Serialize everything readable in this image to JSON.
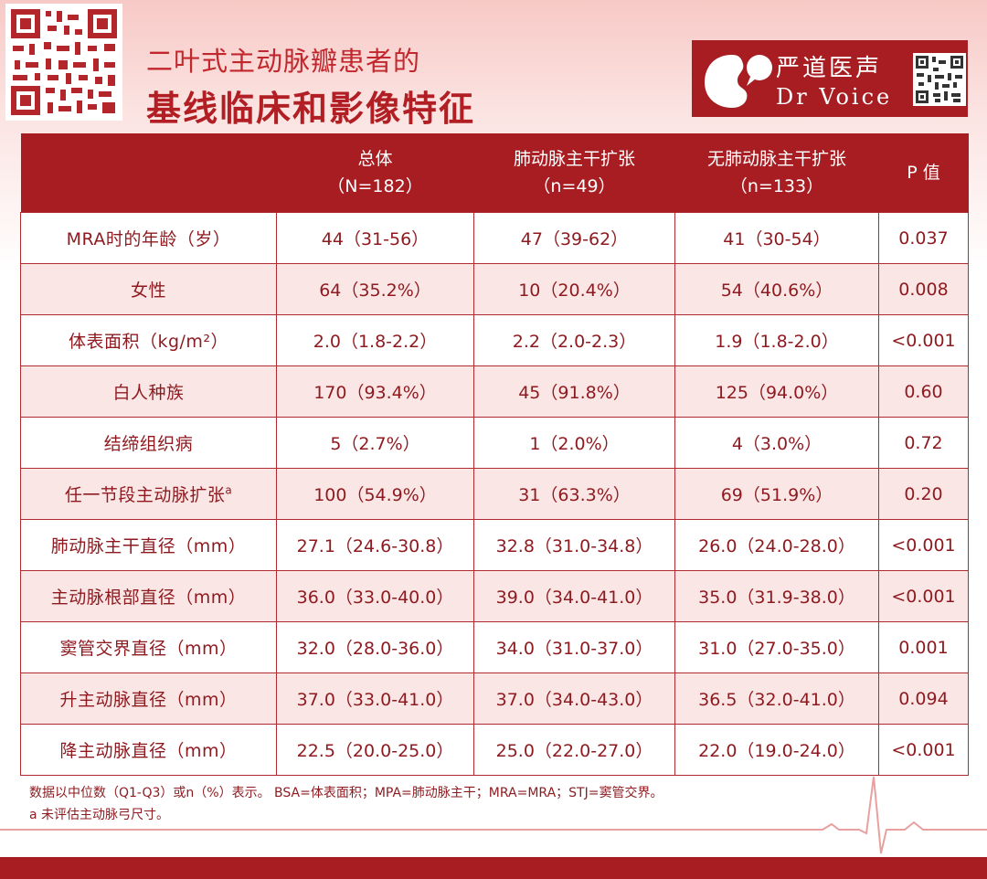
{
  "header": {
    "title_line1": "二叶式主动脉瓣患者的",
    "title_line2": "基线临床和影像特征"
  },
  "brand": {
    "name_cn": "严道医声",
    "name_en": "Dr Voice",
    "color": "#a71d22"
  },
  "table": {
    "columns": [
      {
        "line1": "",
        "line2": ""
      },
      {
        "line1": "总体",
        "line2": "（N=182）"
      },
      {
        "line1": "肺动脉主干扩张",
        "line2": "（n=49）"
      },
      {
        "line1": "无肺动脉主干扩张",
        "line2": "（n=133）"
      },
      {
        "line1": "P 值",
        "line2": ""
      }
    ],
    "rows": [
      {
        "label": "MRA时的年龄（岁）",
        "overall": "44（31-56）",
        "dilated": "47（39-62）",
        "not_dilated": "41（30-54）",
        "p": "0.037"
      },
      {
        "label": "女性",
        "overall": "64（35.2%）",
        "dilated": "10（20.4%）",
        "not_dilated": "54（40.6%）",
        "p": "0.008"
      },
      {
        "label": "体表面积（kg/m²）",
        "overall": "2.0（1.8-2.2）",
        "dilated": "2.2（2.0-2.3）",
        "not_dilated": "1.9（1.8-2.0）",
        "p": "<0.001"
      },
      {
        "label": "白人种族",
        "overall": "170（93.4%）",
        "dilated": "45（91.8%）",
        "not_dilated": "125（94.0%）",
        "p": "0.60"
      },
      {
        "label": "结缔组织病",
        "overall": "5（2.7%）",
        "dilated": "1（2.0%）",
        "not_dilated": "4（3.0%）",
        "p": "0.72"
      },
      {
        "label": "任一节段主动脉扩张",
        "label_sup": "a",
        "overall": "100（54.9%）",
        "dilated": "31（63.3%）",
        "not_dilated": "69（51.9%）",
        "p": "0.20"
      },
      {
        "label": "肺动脉主干直径（mm）",
        "overall": "27.1（24.6-30.8）",
        "dilated": "32.8（31.0-34.8）",
        "not_dilated": "26.0（24.0-28.0）",
        "p": "<0.001"
      },
      {
        "label": "主动脉根部直径（mm）",
        "overall": "36.0（33.0-40.0）",
        "dilated": "39.0（34.0-41.0）",
        "not_dilated": "35.0（31.9-38.0）",
        "p": "<0.001"
      },
      {
        "label": "窦管交界直径（mm）",
        "overall": "32.0（28.0-36.0）",
        "dilated": "34.0（31.0-37.0）",
        "not_dilated": "31.0（27.0-35.0）",
        "p": "0.001"
      },
      {
        "label": "升主动脉直径（mm）",
        "overall": "37.0（33.0-41.0）",
        "dilated": "37.0（34.0-43.0）",
        "not_dilated": "36.5（32.0-41.0）",
        "p": "0.094"
      },
      {
        "label": "降主动脉直径（mm）",
        "overall": "22.5（20.0-25.0）",
        "dilated": "25.0（22.0-27.0）",
        "not_dilated": "22.0（19.0-24.0）",
        "p": "<0.001"
      }
    ]
  },
  "footnotes": {
    "line1": "数据以中位数（Q1-Q3）或n（%）表示。 BSA=体表面积；MPA=肺动脉主干；MRA=MRA；STJ=窦管交界。",
    "line2": "a 未评估主动脉弓尺寸。"
  }
}
